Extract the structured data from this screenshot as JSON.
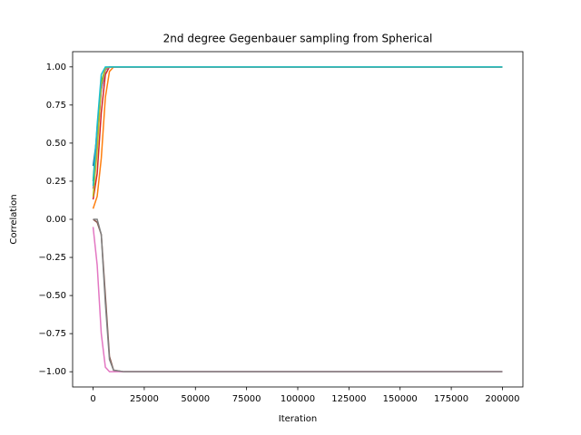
{
  "chart_data": {
    "type": "line",
    "title": "2nd degree Gegenbauer sampling from Spherical",
    "xlabel": "Iteration",
    "ylabel": "Correlation",
    "x": [
      0,
      2000,
      4000,
      6000,
      8000,
      10000,
      15000,
      50000,
      100000,
      150000,
      200000
    ],
    "series": [
      {
        "color": "#1f77b4",
        "values": [
          0.35,
          0.55,
          0.85,
          0.98,
          1,
          1,
          1,
          1,
          1,
          1,
          1
        ]
      },
      {
        "color": "#ff7f0e",
        "values": [
          0.07,
          0.15,
          0.4,
          0.8,
          0.97,
          1,
          1,
          1,
          1,
          1,
          1
        ]
      },
      {
        "color": "#2ca02c",
        "values": [
          0.25,
          0.6,
          0.9,
          0.99,
          1,
          1,
          1,
          1,
          1,
          1,
          1
        ]
      },
      {
        "color": "#d62728",
        "values": [
          0.13,
          0.3,
          0.7,
          0.95,
          1,
          1,
          1,
          1,
          1,
          1,
          1
        ]
      },
      {
        "color": "#9467bd",
        "values": [
          0.2,
          0.5,
          0.85,
          0.98,
          1,
          1,
          1,
          1,
          1,
          1,
          1
        ]
      },
      {
        "color": "#8c564b",
        "values": [
          0,
          -0.02,
          -0.1,
          -0.5,
          -0.9,
          -0.99,
          -1,
          -1,
          -1,
          -1,
          -1
        ]
      },
      {
        "color": "#e377c2",
        "values": [
          -0.05,
          -0.3,
          -0.75,
          -0.97,
          -1,
          -1,
          -1,
          -1,
          -1,
          -1,
          -1
        ]
      },
      {
        "color": "#7f7f7f",
        "values": [
          0,
          0,
          -0.1,
          -0.55,
          -0.92,
          -0.99,
          -1,
          -1,
          -1,
          -1,
          -1
        ]
      },
      {
        "color": "#bcbd22",
        "values": [
          0.15,
          0.45,
          0.88,
          0.99,
          1,
          1,
          1,
          1,
          1,
          1,
          1
        ]
      },
      {
        "color": "#17becf",
        "values": [
          0.22,
          0.62,
          0.95,
          1,
          1,
          1,
          1,
          1,
          1,
          1,
          1
        ]
      }
    ],
    "xlim": [
      -10000,
      210000
    ],
    "xticks": [
      0,
      25000,
      50000,
      75000,
      100000,
      125000,
      150000,
      175000,
      200000
    ],
    "ylim": [
      -1.1,
      1.1
    ],
    "yticks": [
      {
        "value": -1,
        "label": "−1.00"
      },
      {
        "value": -0.75,
        "label": "−0.75"
      },
      {
        "value": -0.5,
        "label": "−0.50"
      },
      {
        "value": -0.25,
        "label": "−0.25"
      },
      {
        "value": 0,
        "label": "0.00"
      },
      {
        "value": 0.25,
        "label": "0.25"
      },
      {
        "value": 0.5,
        "label": "0.50"
      },
      {
        "value": 0.75,
        "label": "0.75"
      },
      {
        "value": 1,
        "label": "1.00"
      }
    ],
    "grid": false
  }
}
